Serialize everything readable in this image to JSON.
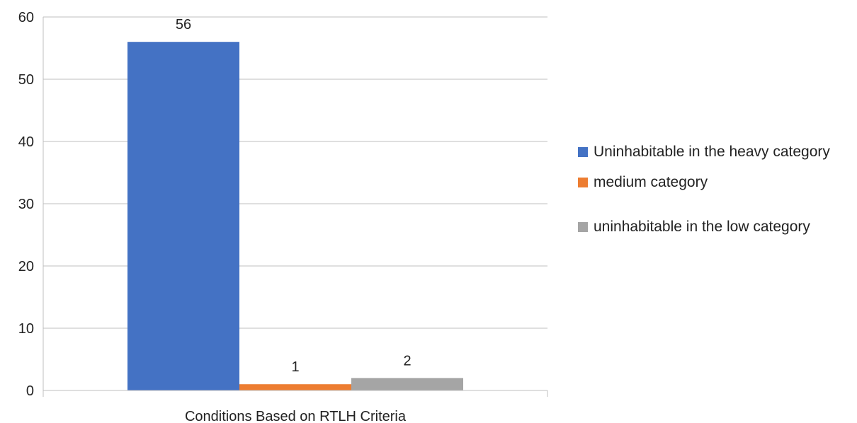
{
  "chart_data": {
    "type": "bar",
    "categories": [
      "Conditions Based on RTLH Criteria"
    ],
    "series": [
      {
        "name": "Uninhabitable in the heavy category",
        "values": [
          56
        ],
        "color": "#4472C4"
      },
      {
        "name": "medium category",
        "values": [
          1
        ],
        "color": "#ED7D31"
      },
      {
        "name": "uninhabitable in the low category",
        "values": [
          2
        ],
        "color": "#A5A5A5"
      }
    ],
    "ylim": [
      0,
      60
    ],
    "yticks": [
      0,
      10,
      20,
      30,
      40,
      50,
      60
    ],
    "grid": true,
    "legend_position": "right",
    "data_labels": true
  }
}
